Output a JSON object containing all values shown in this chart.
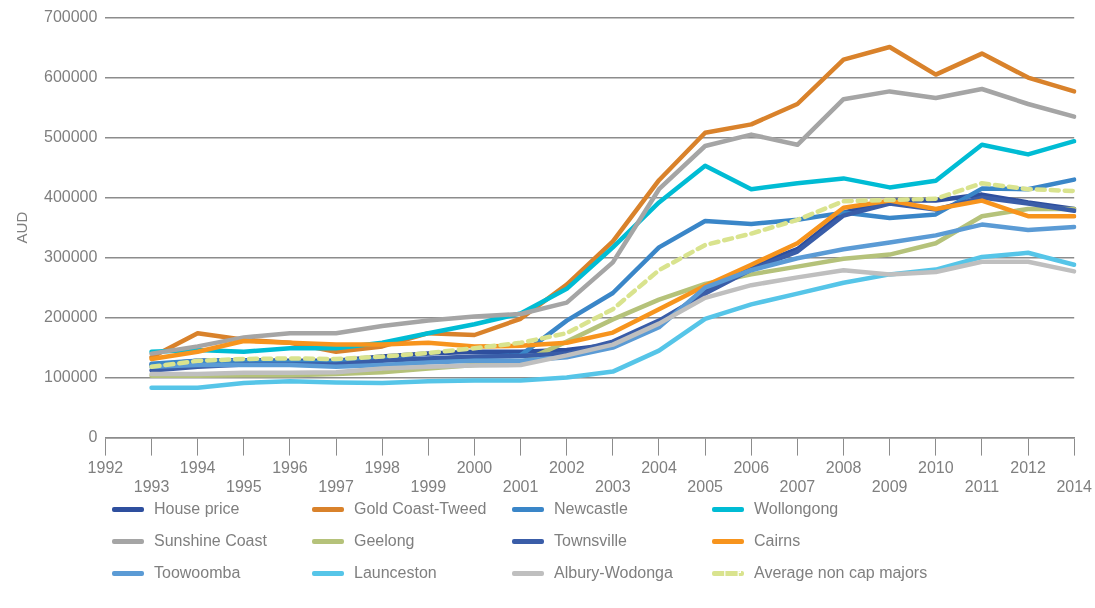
{
  "chart_data": {
    "type": "line",
    "ylabel": "AUD",
    "categories": [
      "1992",
      "1993",
      "1994",
      "1995",
      "1996",
      "1997",
      "1998",
      "1999",
      "2000",
      "2001",
      "2002",
      "2003",
      "2004",
      "2005",
      "2006",
      "2007",
      "2008",
      "2009",
      "2010",
      "2011",
      "2012",
      "2014"
    ],
    "ylim": [
      0,
      700000
    ],
    "yticks": [
      0,
      100000,
      200000,
      300000,
      400000,
      500000,
      600000,
      700000
    ],
    "grid": "y",
    "legend": "bottom",
    "marker": "none",
    "series": [
      {
        "name": "House price",
        "color": "#2e4f9e",
        "values": [
          null,
          121000,
          128000,
          129000,
          128000,
          128000,
          135000,
          140000,
          143000,
          143000,
          146000,
          155000,
          187000,
          246000,
          285000,
          314000,
          375000,
          395000,
          395000,
          405000,
          392000,
          381000
        ]
      },
      {
        "name": "Gold Coast-Tweed",
        "color": "#d9822b",
        "values": [
          null,
          134000,
          174000,
          163000,
          158000,
          143000,
          152000,
          174000,
          171000,
          198000,
          255000,
          327000,
          429000,
          508000,
          522000,
          556000,
          630000,
          651000,
          605000,
          640000,
          600000,
          577000
        ]
      },
      {
        "name": "Newcastle",
        "color": "#3a86c8",
        "values": [
          null,
          123000,
          128000,
          128000,
          126000,
          126000,
          131000,
          131000,
          134000,
          137000,
          195000,
          241000,
          317000,
          361000,
          356000,
          363000,
          375000,
          366000,
          372000,
          415000,
          414000,
          430000
        ]
      },
      {
        "name": "Wollongong",
        "color": "#00bcd4",
        "values": [
          null,
          143000,
          146000,
          143000,
          149000,
          149000,
          158000,
          174000,
          189000,
          207000,
          248000,
          317000,
          392000,
          453000,
          414000,
          424000,
          432000,
          417000,
          428000,
          488000,
          472000,
          494000
        ]
      },
      {
        "name": "Sunshine Coast",
        "color": "#a5a5a5",
        "values": [
          null,
          140000,
          152000,
          167000,
          174000,
          174000,
          186000,
          195000,
          202000,
          206000,
          225000,
          292000,
          414000,
          486000,
          505000,
          488000,
          564000,
          577000,
          566000,
          581000,
          556000,
          535000
        ]
      },
      {
        "name": "Geelong",
        "color": "#b5c27a",
        "values": [
          null,
          103000,
          103000,
          104000,
          104000,
          106000,
          109000,
          115000,
          121000,
          125000,
          160000,
          197000,
          230000,
          256000,
          272000,
          285000,
          298000,
          305000,
          324000,
          369000,
          381000,
          381000
        ]
      },
      {
        "name": "Townsville",
        "color": "#3a5da8",
        "values": [
          null,
          112000,
          118000,
          122000,
          122000,
          122000,
          128000,
          132000,
          135000,
          136000,
          140000,
          160000,
          195000,
          240000,
          280000,
          310000,
          370000,
          390000,
          380000,
          400000,
          390000,
          378000
        ]
      },
      {
        "name": "Cairns",
        "color": "#f7941d",
        "values": [
          null,
          131000,
          143000,
          161000,
          158000,
          155000,
          155000,
          158000,
          152000,
          153000,
          158000,
          175000,
          214000,
          253000,
          288000,
          324000,
          383000,
          395000,
          381000,
          395000,
          369000,
          369000
        ]
      },
      {
        "name": "Toowoomba",
        "color": "#5b9bd5",
        "values": [
          null,
          118000,
          121000,
          121000,
          121000,
          118000,
          121000,
          125000,
          128000,
          128000,
          134000,
          150000,
          184000,
          250000,
          279000,
          299000,
          314000,
          325000,
          337000,
          355000,
          346000,
          351000
        ]
      },
      {
        "name": "Launceston",
        "color": "#56c5e8",
        "values": [
          null,
          83000,
          83000,
          91000,
          94000,
          92000,
          91000,
          94000,
          95000,
          95000,
          100000,
          110000,
          145000,
          198000,
          222000,
          240000,
          258000,
          272000,
          280000,
          301000,
          308000,
          288000
        ]
      },
      {
        "name": "Albury-Wodonga",
        "color": "#bfbfbf",
        "values": [
          null,
          106000,
          106000,
          108000,
          108000,
          109000,
          115000,
          118000,
          120000,
          121000,
          137000,
          155000,
          190000,
          233000,
          254000,
          267000,
          279000,
          272000,
          276000,
          293000,
          293000,
          277000
        ]
      },
      {
        "name": "Average non cap majors",
        "color": "#d9e38e",
        "line_style": "dashed",
        "values": [
          null,
          118000,
          128000,
          131000,
          132000,
          131000,
          135000,
          141000,
          149000,
          158000,
          174000,
          214000,
          279000,
          321000,
          340000,
          363000,
          394000,
          396000,
          398000,
          424000,
          414000,
          411000
        ]
      }
    ]
  }
}
